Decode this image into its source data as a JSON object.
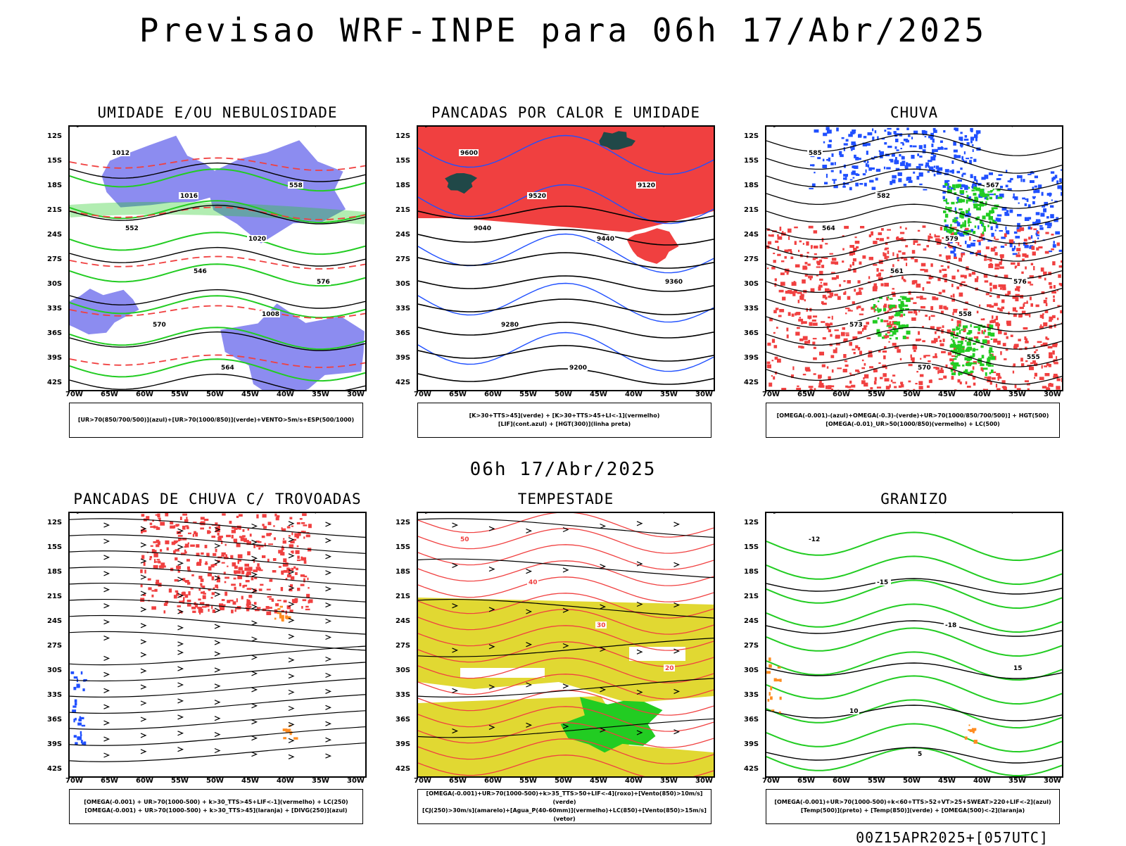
{
  "title": "Previsao WRF-INPE  para 06h 17/Abr/2025",
  "mid_title": "06h 17/Abr/2025",
  "footer": "00Z15APR2025+[057UTC]",
  "axes": {
    "lat_labels": [
      "12S",
      "15S",
      "18S",
      "21S",
      "24S",
      "27S",
      "30S",
      "33S",
      "36S",
      "39S",
      "42S"
    ],
    "lon_labels": [
      "70W",
      "65W",
      "60W",
      "55W",
      "50W",
      "45W",
      "40W",
      "35W",
      "30W"
    ]
  },
  "colors": {
    "blue_fill": "#8c8cf0",
    "green": "#22cc22",
    "red": "#f04040",
    "yellow": "#e1d832",
    "orange": "#ff8c20",
    "blue": "#2050ff",
    "dark_teal": "#204848"
  },
  "panels": [
    {
      "title": "UMIDADE E/OU NEBULOSIDADE",
      "legend": [
        "[UR>70(850/700/500)](azul)+[UR>70(1000/850)](verde)+VENTO>5m/s+ESP(500/1000)"
      ],
      "labels": [
        "1012",
        "1016",
        "1020",
        "576",
        "570",
        "564",
        "558",
        "552",
        "546",
        "1008"
      ]
    },
    {
      "title": "PANCADAS POR CALOR E UMIDADE",
      "legend": [
        "[K>30+TTS>45](verde)  +  [K>30+TTS>45+LI<-1](vermelho)",
        "[LIF](cont.azul)  +  [HGT(300)](linha preta)"
      ],
      "labels": [
        "9600",
        "9520",
        "9440",
        "9360",
        "9280",
        "9200",
        "9120",
        "9040"
      ]
    },
    {
      "title": "CHUVA",
      "legend": [
        "[OMEGA(-0.001)-(azul)+OMEGA(-0.3)-(verde)+UR>70(1000/850/700/500)]  +  HGT(500)",
        "[OMEGA(-0.01)_UR>50(1000/850)(vermelho)  +  LC(500)"
      ],
      "labels": [
        "585",
        "582",
        "579",
        "576",
        "573",
        "570",
        "567",
        "564",
        "561",
        "558",
        "555"
      ]
    },
    {
      "title": "PANCADAS DE CHUVA C/ TROVOADAS",
      "legend": [
        "[OMEGA(-0.001) + UR>70(1000-500) + k>30_TTS>45+LIF<-1](vermelho) + LC(250)",
        "[OMEGA(-0.001) + UR>70(1000-500) + k>30_TTS>45](laranja)  +  [DIVG(250)](azul)"
      ],
      "labels": []
    },
    {
      "title": "TEMPESTADE",
      "legend": [
        "[OMEGA(-0.001)+UR>70(1000-500)+k>35_TTS>50+LIF<-4](roxo)+[Vento(850)>10m/s](verde)",
        "[CJ(250)>30m/s](amarelo)+[Agua_P(40-60mm)](vermelho)+LC(850)+[Vento(850)>15m/s](vetor)"
      ],
      "labels": [
        "50",
        "40",
        "30",
        "20"
      ]
    },
    {
      "title": "GRANIZO",
      "legend": [
        "[OMEGA(-0.001)+UR>70(1000-500)+k<60+TTS>52+VT>25+SWEAT>220+LIF<-2](azul)",
        "[Temp(500)](preto)  +  [Temp(850)](verde)  +  [OMEGA(500)<-2](laranja)"
      ],
      "labels": [
        "-12",
        "-15",
        "-18",
        "15",
        "10",
        "5"
      ]
    }
  ]
}
